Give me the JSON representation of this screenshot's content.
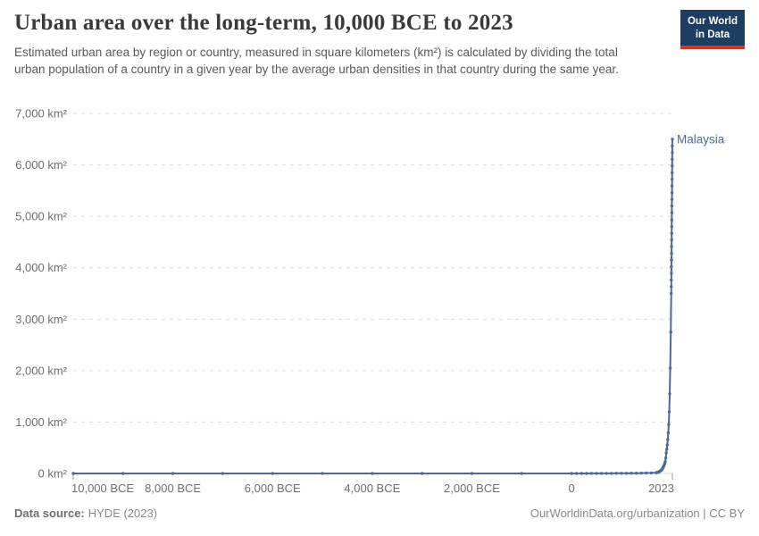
{
  "header": {
    "title": "Urban area over the long-term, 10,000 BCE to 2023",
    "subtitle": "Estimated urban area by region or country, measured in square kilometers (km²) is calculated by dividing the total urban population of a country in a given year by the average urban densities in that country during the same year."
  },
  "logo": {
    "line1": "Our World",
    "line2": "in Data",
    "bg_color": "#1d3d63",
    "stripe_color": "#dc3419"
  },
  "footer": {
    "source_label": "Data source:",
    "source_value": "HYDE (2023)",
    "link": "OurWorldinData.org/urbanization | CC BY"
  },
  "colors": {
    "series_line": "#4c6a9c",
    "gridline": "#d9d9d9",
    "axis_tick": "#9a9a9a",
    "tick_label": "#6e6e6e",
    "title_text": "#3a3a3a",
    "subtitle_text": "#5a5a5a"
  },
  "chart_data": {
    "type": "line",
    "title": "Urban area over the long-term, 10,000 BCE to 2023",
    "xlabel": "",
    "ylabel": "",
    "xlim": [
      -10000,
      2023
    ],
    "ylim": [
      0,
      7000
    ],
    "grid": "horizontal-dashed",
    "legend_position": "end-of-line-label",
    "x_ticks": [
      {
        "value": -10000,
        "label": "10,000 BCE",
        "anchor": "start"
      },
      {
        "value": -8000,
        "label": "8,000 BCE",
        "anchor": "middle"
      },
      {
        "value": -6000,
        "label": "6,000 BCE",
        "anchor": "middle"
      },
      {
        "value": -4000,
        "label": "4,000 BCE",
        "anchor": "middle"
      },
      {
        "value": -2000,
        "label": "2,000 BCE",
        "anchor": "middle"
      },
      {
        "value": 0,
        "label": "0",
        "anchor": "middle"
      },
      {
        "value": 2023,
        "label": "2023",
        "anchor": "end"
      }
    ],
    "y_ticks": [
      {
        "value": 0,
        "label": "0 km²"
      },
      {
        "value": 1000,
        "label": "1,000 km²"
      },
      {
        "value": 2000,
        "label": "2,000 km²"
      },
      {
        "value": 3000,
        "label": "3,000 km²"
      },
      {
        "value": 4000,
        "label": "4,000 km²"
      },
      {
        "value": 5000,
        "label": "5,000 km²"
      },
      {
        "value": 6000,
        "label": "6,000 km²"
      },
      {
        "value": 7000,
        "label": "7,000 km²"
      }
    ],
    "series": [
      {
        "name": "Malaysia",
        "color": "#4c6a9c",
        "points": [
          [
            -10000,
            0
          ],
          [
            -9000,
            0
          ],
          [
            -8000,
            0
          ],
          [
            -7000,
            0
          ],
          [
            -6000,
            0
          ],
          [
            -5000,
            0
          ],
          [
            -4000,
            0
          ],
          [
            -3000,
            0
          ],
          [
            -2000,
            0
          ],
          [
            -1000,
            0
          ],
          [
            0,
            0.4
          ],
          [
            100,
            0.5
          ],
          [
            200,
            0.6
          ],
          [
            300,
            0.8
          ],
          [
            400,
            1.0
          ],
          [
            500,
            1.2
          ],
          [
            600,
            1.5
          ],
          [
            700,
            1.8
          ],
          [
            800,
            2.2
          ],
          [
            900,
            2.7
          ],
          [
            1000,
            3.3
          ],
          [
            1100,
            4.0
          ],
          [
            1200,
            4.9
          ],
          [
            1300,
            6.0
          ],
          [
            1400,
            7.3
          ],
          [
            1500,
            8.9
          ],
          [
            1600,
            11
          ],
          [
            1700,
            15
          ],
          [
            1710,
            17
          ],
          [
            1720,
            20
          ],
          [
            1730,
            23
          ],
          [
            1740,
            26
          ],
          [
            1750,
            30
          ],
          [
            1760,
            35
          ],
          [
            1770,
            41
          ],
          [
            1780,
            48
          ],
          [
            1790,
            56
          ],
          [
            1800,
            65
          ],
          [
            1810,
            76
          ],
          [
            1820,
            89
          ],
          [
            1830,
            104
          ],
          [
            1840,
            122
          ],
          [
            1850,
            143
          ],
          [
            1860,
            168
          ],
          [
            1870,
            197
          ],
          [
            1880,
            231
          ],
          [
            1890,
            300
          ],
          [
            1900,
            400
          ],
          [
            1910,
            470
          ],
          [
            1920,
            560
          ],
          [
            1930,
            660
          ],
          [
            1940,
            790
          ],
          [
            1950,
            950
          ],
          [
            1960,
            1200
          ],
          [
            1970,
            1550
          ],
          [
            1980,
            2050
          ],
          [
            1990,
            2750
          ],
          [
            2000,
            3500
          ],
          [
            2001,
            3630
          ],
          [
            2002,
            3760
          ],
          [
            2003,
            3890
          ],
          [
            2004,
            4020
          ],
          [
            2005,
            4150
          ],
          [
            2006,
            4280
          ],
          [
            2007,
            4410
          ],
          [
            2008,
            4540
          ],
          [
            2009,
            4670
          ],
          [
            2010,
            4800
          ],
          [
            2011,
            4930
          ],
          [
            2012,
            5070
          ],
          [
            2013,
            5200
          ],
          [
            2014,
            5330
          ],
          [
            2015,
            5460
          ],
          [
            2016,
            5590
          ],
          [
            2017,
            5720
          ],
          [
            2018,
            5850
          ],
          [
            2019,
            5980
          ],
          [
            2020,
            6110
          ],
          [
            2021,
            6240
          ],
          [
            2022,
            6370
          ],
          [
            2023,
            6500
          ]
        ]
      }
    ]
  }
}
